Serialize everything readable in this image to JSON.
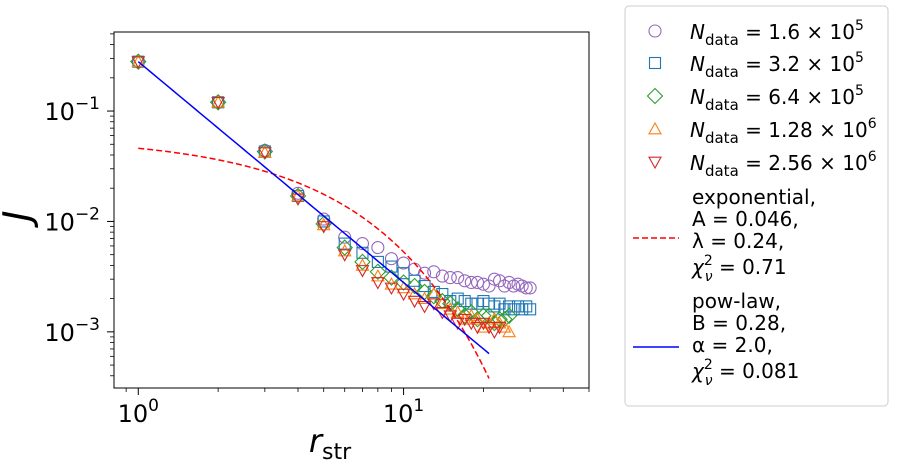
{
  "chart_data": {
    "type": "scatter",
    "x_scale": "log",
    "y_scale": "log",
    "xlim": [
      0.81,
      50
    ],
    "ylim": [
      0.00031,
      0.52
    ],
    "xlabel": "r",
    "xlabel_sub": "str",
    "ylabel": "J",
    "x_ticks": [
      {
        "value": 1,
        "base": "10",
        "exp": "0"
      },
      {
        "value": 10,
        "base": "10",
        "exp": "1"
      }
    ],
    "y_ticks": [
      {
        "value": 0.001,
        "base": "10",
        "exp": "−3"
      },
      {
        "value": 0.01,
        "base": "10",
        "exp": "−2"
      },
      {
        "value": 0.1,
        "base": "10",
        "exp": "−1"
      }
    ],
    "series": [
      {
        "name": "N_data = 1.6 × 10^5",
        "label_main": "N",
        "label_sub": "data",
        "label_eq": " = 1.6 × 10",
        "label_exp": "5",
        "marker": "circle",
        "color": "#9467bd",
        "x": [
          1,
          2,
          3,
          4,
          5,
          6,
          7,
          8,
          9,
          10,
          11,
          12,
          13,
          14,
          15,
          16,
          17,
          18,
          19,
          20,
          21,
          22,
          23,
          24,
          25,
          26,
          27,
          28,
          29,
          30
        ],
        "y": [
          0.28,
          0.12,
          0.044,
          0.018,
          0.0105,
          0.0072,
          0.0063,
          0.0058,
          0.0046,
          0.0042,
          0.0037,
          0.0034,
          0.0035,
          0.0032,
          0.0031,
          0.0031,
          0.0029,
          0.0028,
          0.0028,
          0.0027,
          0.0026,
          0.003,
          0.0029,
          0.0026,
          0.0028,
          0.0026,
          0.0027,
          0.0026,
          0.0025,
          0.0025
        ]
      },
      {
        "name": "N_data = 3.2 × 10^5",
        "label_main": "N",
        "label_sub": "data",
        "label_eq": " = 3.2 × 10",
        "label_exp": "5",
        "marker": "square",
        "color": "#1f77b4",
        "x": [
          1,
          2,
          3,
          4,
          5,
          6,
          7,
          8,
          9,
          10,
          11,
          12,
          13,
          14,
          15,
          16,
          17,
          18,
          19,
          20,
          21,
          22,
          23,
          24,
          25,
          26,
          27,
          28,
          29,
          30
        ],
        "y": [
          0.28,
          0.12,
          0.043,
          0.017,
          0.01,
          0.0063,
          0.0052,
          0.0043,
          0.0039,
          0.0034,
          0.0029,
          0.0026,
          0.0023,
          0.0022,
          0.0019,
          0.002,
          0.0019,
          0.0018,
          0.0018,
          0.0019,
          0.0018,
          0.0017,
          0.0018,
          0.0016,
          0.0017,
          0.0016,
          0.0017,
          0.0016,
          0.0017,
          0.0016
        ]
      },
      {
        "name": "N_data = 6.4 × 10^5",
        "label_main": "N",
        "label_sub": "data",
        "label_eq": " = 6.4 × 10",
        "label_exp": "5",
        "marker": "diamond",
        "color": "#2ca02c",
        "x": [
          1,
          2,
          3,
          4,
          5,
          6,
          7,
          8,
          9,
          10,
          11,
          12,
          13,
          14,
          15,
          16,
          17,
          18,
          19,
          20,
          21,
          22,
          23,
          24,
          25
        ],
        "y": [
          0.28,
          0.12,
          0.043,
          0.017,
          0.0095,
          0.0058,
          0.0043,
          0.0035,
          0.0031,
          0.0028,
          0.0026,
          0.0023,
          0.0021,
          0.0019,
          0.0018,
          0.0016,
          0.0014,
          0.0015,
          0.0013,
          0.0014,
          0.0014,
          0.0012,
          0.0013,
          0.0013,
          0.0014
        ]
      },
      {
        "name": "N_data = 1.28 × 10^6",
        "label_main": "N",
        "label_sub": "data",
        "label_eq": " = 1.28 × 10",
        "label_exp": "6",
        "marker": "triangle-up",
        "color": "#ff7f0e",
        "x": [
          1,
          2,
          3,
          4,
          5,
          6,
          7,
          8,
          9,
          10,
          11,
          12,
          13,
          14,
          15,
          16,
          17,
          18,
          19,
          20,
          21,
          22,
          23,
          24,
          25
        ],
        "y": [
          0.28,
          0.12,
          0.042,
          0.017,
          0.0093,
          0.0054,
          0.004,
          0.0032,
          0.0027,
          0.0025,
          0.0022,
          0.002,
          0.0022,
          0.0018,
          0.0016,
          0.0015,
          0.0013,
          0.0014,
          0.0013,
          0.0011,
          0.0012,
          0.0013,
          0.0012,
          0.0011,
          0.001
        ]
      },
      {
        "name": "N_data = 2.56 × 10^6",
        "label_main": "N",
        "label_sub": "data",
        "label_eq": " = 2.56 × 10",
        "label_exp": "6",
        "marker": "triangle-down",
        "color": "#d62728",
        "x": [
          1,
          2,
          3,
          4,
          5,
          6,
          7,
          8,
          9,
          10,
          11,
          12,
          13,
          14,
          15,
          16,
          17,
          18,
          19,
          20,
          21,
          22,
          23
        ],
        "y": [
          0.28,
          0.12,
          0.042,
          0.016,
          0.009,
          0.005,
          0.0036,
          0.0028,
          0.0025,
          0.0022,
          0.0019,
          0.0017,
          0.0018,
          0.0015,
          0.0014,
          0.0012,
          0.0013,
          0.0012,
          0.0011,
          0.0012,
          0.0011,
          0.001,
          0.0011
        ]
      }
    ],
    "fits": [
      {
        "name": "exponential",
        "style": "dashed",
        "color": "#ff0000",
        "label_lines": [
          "exponential,",
          "A = 0.046,",
          "λ = 0.24,"
        ],
        "chi_value": " = 0.71",
        "A": 0.046,
        "lambda": 0.24,
        "x_range": [
          1,
          21
        ]
      },
      {
        "name": "pow-law",
        "style": "solid",
        "color": "#0000ff",
        "label_lines": [
          "pow-law,",
          "B = 0.28,",
          "α = 2.0,"
        ],
        "chi_value": " = 0.081",
        "B": 0.28,
        "alpha": 2.0,
        "x_range": [
          1,
          21
        ]
      }
    ],
    "chi_symbol": "χ",
    "chi_sup": "2",
    "chi_sub": "ν",
    "legend_position": "outside-right"
  }
}
